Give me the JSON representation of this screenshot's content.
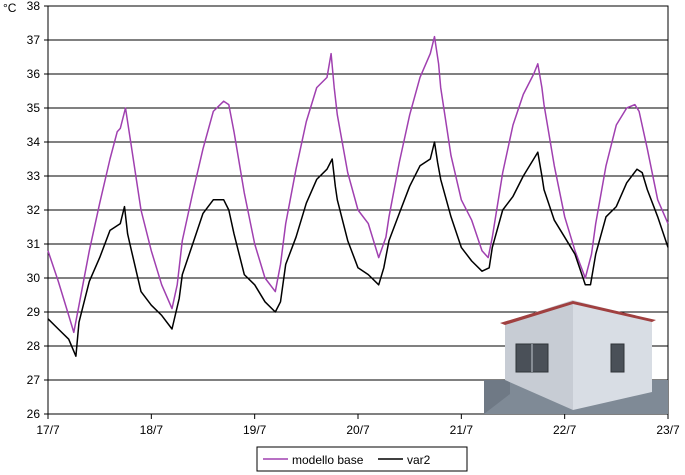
{
  "chart_data": {
    "type": "line",
    "unit_label": "°C",
    "ylim": [
      26,
      38
    ],
    "yticks": [
      26,
      27,
      28,
      29,
      30,
      31,
      32,
      33,
      34,
      35,
      36,
      37,
      38
    ],
    "xlim": [
      0,
      6
    ],
    "xtick_labels": [
      "17/7",
      "18/7",
      "19/7",
      "20/7",
      "21/7",
      "22/7",
      "23/7"
    ],
    "grid": "horizontal",
    "legend_position": "bottom",
    "series": [
      {
        "name": "modello base",
        "color": "#a040b0",
        "x": [
          0.0,
          0.1,
          0.2,
          0.25,
          0.3,
          0.4,
          0.5,
          0.6,
          0.67,
          0.7,
          0.75,
          0.8,
          0.9,
          1.0,
          1.1,
          1.2,
          1.25,
          1.3,
          1.4,
          1.5,
          1.6,
          1.7,
          1.75,
          1.8,
          1.9,
          2.0,
          2.1,
          2.2,
          2.25,
          2.3,
          2.4,
          2.5,
          2.6,
          2.7,
          2.74,
          2.77,
          2.8,
          2.9,
          3.0,
          3.1,
          3.2,
          3.27,
          3.3,
          3.4,
          3.5,
          3.6,
          3.7,
          3.74,
          3.78,
          3.8,
          3.9,
          4.0,
          4.1,
          4.2,
          4.26,
          4.3,
          4.4,
          4.5,
          4.6,
          4.7,
          4.74,
          4.78,
          4.8,
          4.9,
          5.0,
          5.1,
          5.2,
          5.26,
          5.3,
          5.4,
          5.5,
          5.6,
          5.68,
          5.72,
          5.8,
          5.9,
          6.0
        ],
        "values": [
          30.8,
          29.9,
          28.9,
          28.4,
          29.2,
          30.8,
          32.2,
          33.5,
          34.3,
          34.4,
          35.0,
          34.0,
          32.0,
          30.8,
          29.8,
          29.1,
          29.8,
          31.1,
          32.5,
          33.8,
          34.9,
          35.2,
          35.1,
          34.3,
          32.5,
          31.0,
          30.0,
          29.6,
          30.4,
          31.6,
          33.2,
          34.6,
          35.6,
          35.9,
          36.6,
          35.6,
          34.8,
          33.1,
          32.0,
          31.6,
          30.6,
          31.2,
          31.8,
          33.4,
          34.8,
          35.9,
          36.6,
          37.1,
          36.3,
          35.6,
          33.6,
          32.3,
          31.7,
          30.8,
          30.6,
          31.2,
          33.1,
          34.5,
          35.4,
          36.0,
          36.3,
          35.6,
          35.1,
          33.3,
          31.8,
          30.8,
          30.0,
          30.7,
          31.6,
          33.3,
          34.5,
          35.0,
          35.1,
          34.9,
          33.8,
          32.3,
          31.6
        ]
      },
      {
        "name": "var2",
        "color": "#000000",
        "x": [
          0.0,
          0.1,
          0.2,
          0.27,
          0.3,
          0.4,
          0.5,
          0.6,
          0.7,
          0.74,
          0.77,
          0.8,
          0.9,
          1.0,
          1.1,
          1.2,
          1.27,
          1.3,
          1.4,
          1.5,
          1.6,
          1.7,
          1.75,
          1.8,
          1.9,
          2.0,
          2.1,
          2.2,
          2.25,
          2.3,
          2.4,
          2.5,
          2.6,
          2.7,
          2.75,
          2.78,
          2.8,
          2.9,
          3.0,
          3.1,
          3.2,
          3.25,
          3.3,
          3.4,
          3.5,
          3.6,
          3.7,
          3.74,
          3.77,
          3.8,
          3.9,
          4.0,
          4.1,
          4.2,
          4.27,
          4.3,
          4.4,
          4.5,
          4.6,
          4.7,
          4.74,
          4.78,
          4.8,
          4.9,
          5.0,
          5.1,
          5.2,
          5.25,
          5.3,
          5.4,
          5.5,
          5.6,
          5.7,
          5.75,
          5.8,
          5.9,
          6.0
        ],
        "values": [
          28.8,
          28.5,
          28.2,
          27.7,
          28.7,
          29.9,
          30.6,
          31.4,
          31.6,
          32.1,
          31.3,
          30.9,
          29.6,
          29.2,
          28.9,
          28.5,
          29.4,
          30.1,
          31.0,
          31.9,
          32.3,
          32.3,
          32.0,
          31.3,
          30.1,
          29.8,
          29.3,
          29.0,
          29.3,
          30.4,
          31.2,
          32.2,
          32.9,
          33.2,
          33.5,
          32.7,
          32.3,
          31.1,
          30.3,
          30.1,
          29.8,
          30.3,
          31.1,
          31.9,
          32.7,
          33.3,
          33.5,
          34.0,
          33.4,
          32.9,
          31.8,
          30.9,
          30.5,
          30.2,
          30.3,
          30.9,
          32.0,
          32.4,
          33.0,
          33.5,
          33.7,
          33.0,
          32.6,
          31.7,
          31.2,
          30.7,
          29.8,
          29.8,
          30.7,
          31.8,
          32.1,
          32.8,
          33.2,
          33.1,
          32.6,
          31.8,
          30.9
        ]
      }
    ]
  },
  "inset_image": {
    "subject": "building-render"
  }
}
